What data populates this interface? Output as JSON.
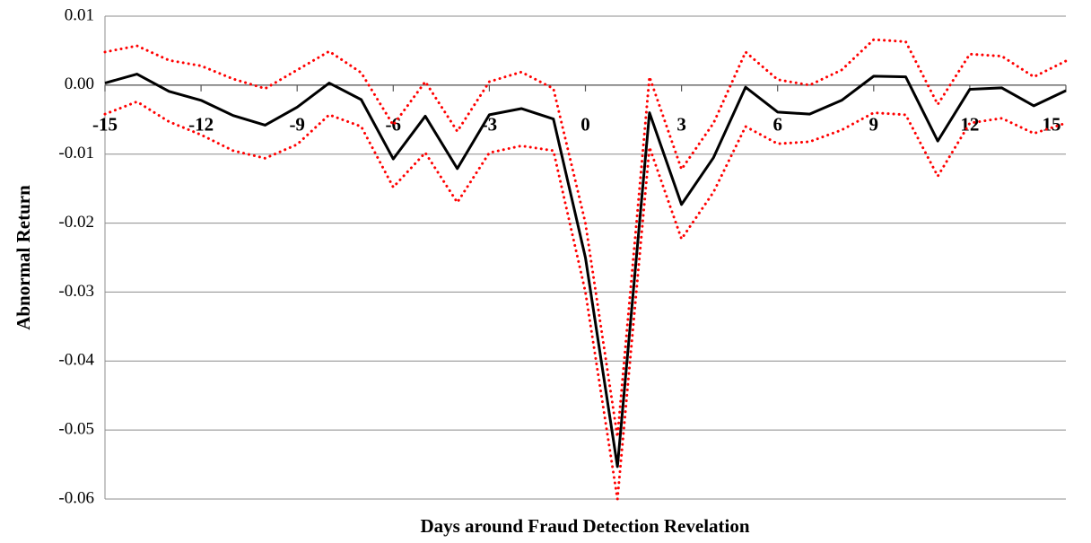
{
  "chart_data": {
    "type": "line",
    "y_label": "Abnormal Return",
    "x_label": "Days around Fraud Detection Revelation",
    "x": [
      -15,
      -14,
      -13,
      -12,
      -11,
      -10,
      -9,
      -8,
      -7,
      -6,
      -5,
      -4,
      -3,
      -2,
      -1,
      0,
      1,
      2,
      3,
      4,
      5,
      6,
      7,
      8,
      9,
      10,
      11,
      12,
      13,
      14,
      15
    ],
    "series": [
      {
        "color": "#ff0000",
        "style": "dotted",
        "values": [
          0.0048,
          0.0057,
          0.0036,
          0.0028,
          0.0009,
          -0.0005,
          0.0022,
          0.0049,
          0.0018,
          -0.0058,
          0.0005,
          -0.0067,
          0.0005,
          0.0019,
          -0.0005,
          -0.02,
          -0.051,
          0.0012,
          -0.0122,
          -0.0055,
          0.0048,
          0.0008,
          0.0,
          0.0022,
          0.0066,
          0.0063,
          -0.0028,
          0.0045,
          0.0042,
          0.0012,
          0.0035
        ]
      },
      {
        "color": "#ff0000",
        "style": "dotted",
        "values": [
          -0.0042,
          -0.0024,
          -0.0053,
          -0.0072,
          -0.0095,
          -0.0106,
          -0.0086,
          -0.0043,
          -0.006,
          -0.0148,
          -0.0098,
          -0.017,
          -0.0098,
          -0.0088,
          -0.0095,
          -0.03,
          -0.06,
          -0.009,
          -0.0223,
          -0.0155,
          -0.006,
          -0.0085,
          -0.0082,
          -0.0065,
          -0.004,
          -0.0043,
          -0.0132,
          -0.0055,
          -0.0048,
          -0.007,
          -0.0055
        ]
      },
      {
        "color": "#000000",
        "style": "solid",
        "values": [
          0.0003,
          0.0016,
          -0.0009,
          -0.0022,
          -0.0044,
          -0.0058,
          -0.0032,
          0.0003,
          -0.0021,
          -0.0107,
          -0.0045,
          -0.0121,
          -0.0043,
          -0.0034,
          -0.0049,
          -0.025,
          -0.0553,
          -0.004,
          -0.0173,
          -0.0105,
          -0.0003,
          -0.0039,
          -0.0042,
          -0.0022,
          0.0013,
          0.0012,
          -0.0081,
          -0.0006,
          -0.0004,
          -0.003,
          -0.0008
        ]
      }
    ],
    "xlim": [
      -15,
      15
    ],
    "xticks": [
      -15,
      -12,
      -9,
      -6,
      -3,
      0,
      3,
      6,
      9,
      12,
      15
    ],
    "ylim": [
      -0.06,
      0.01
    ],
    "yticks": [
      0.01,
      {
        "value": 0,
        "label": "0.00"
      },
      -0.01,
      -0.02,
      -0.03,
      -0.04,
      -0.05,
      -0.06
    ],
    "grid": true
  }
}
